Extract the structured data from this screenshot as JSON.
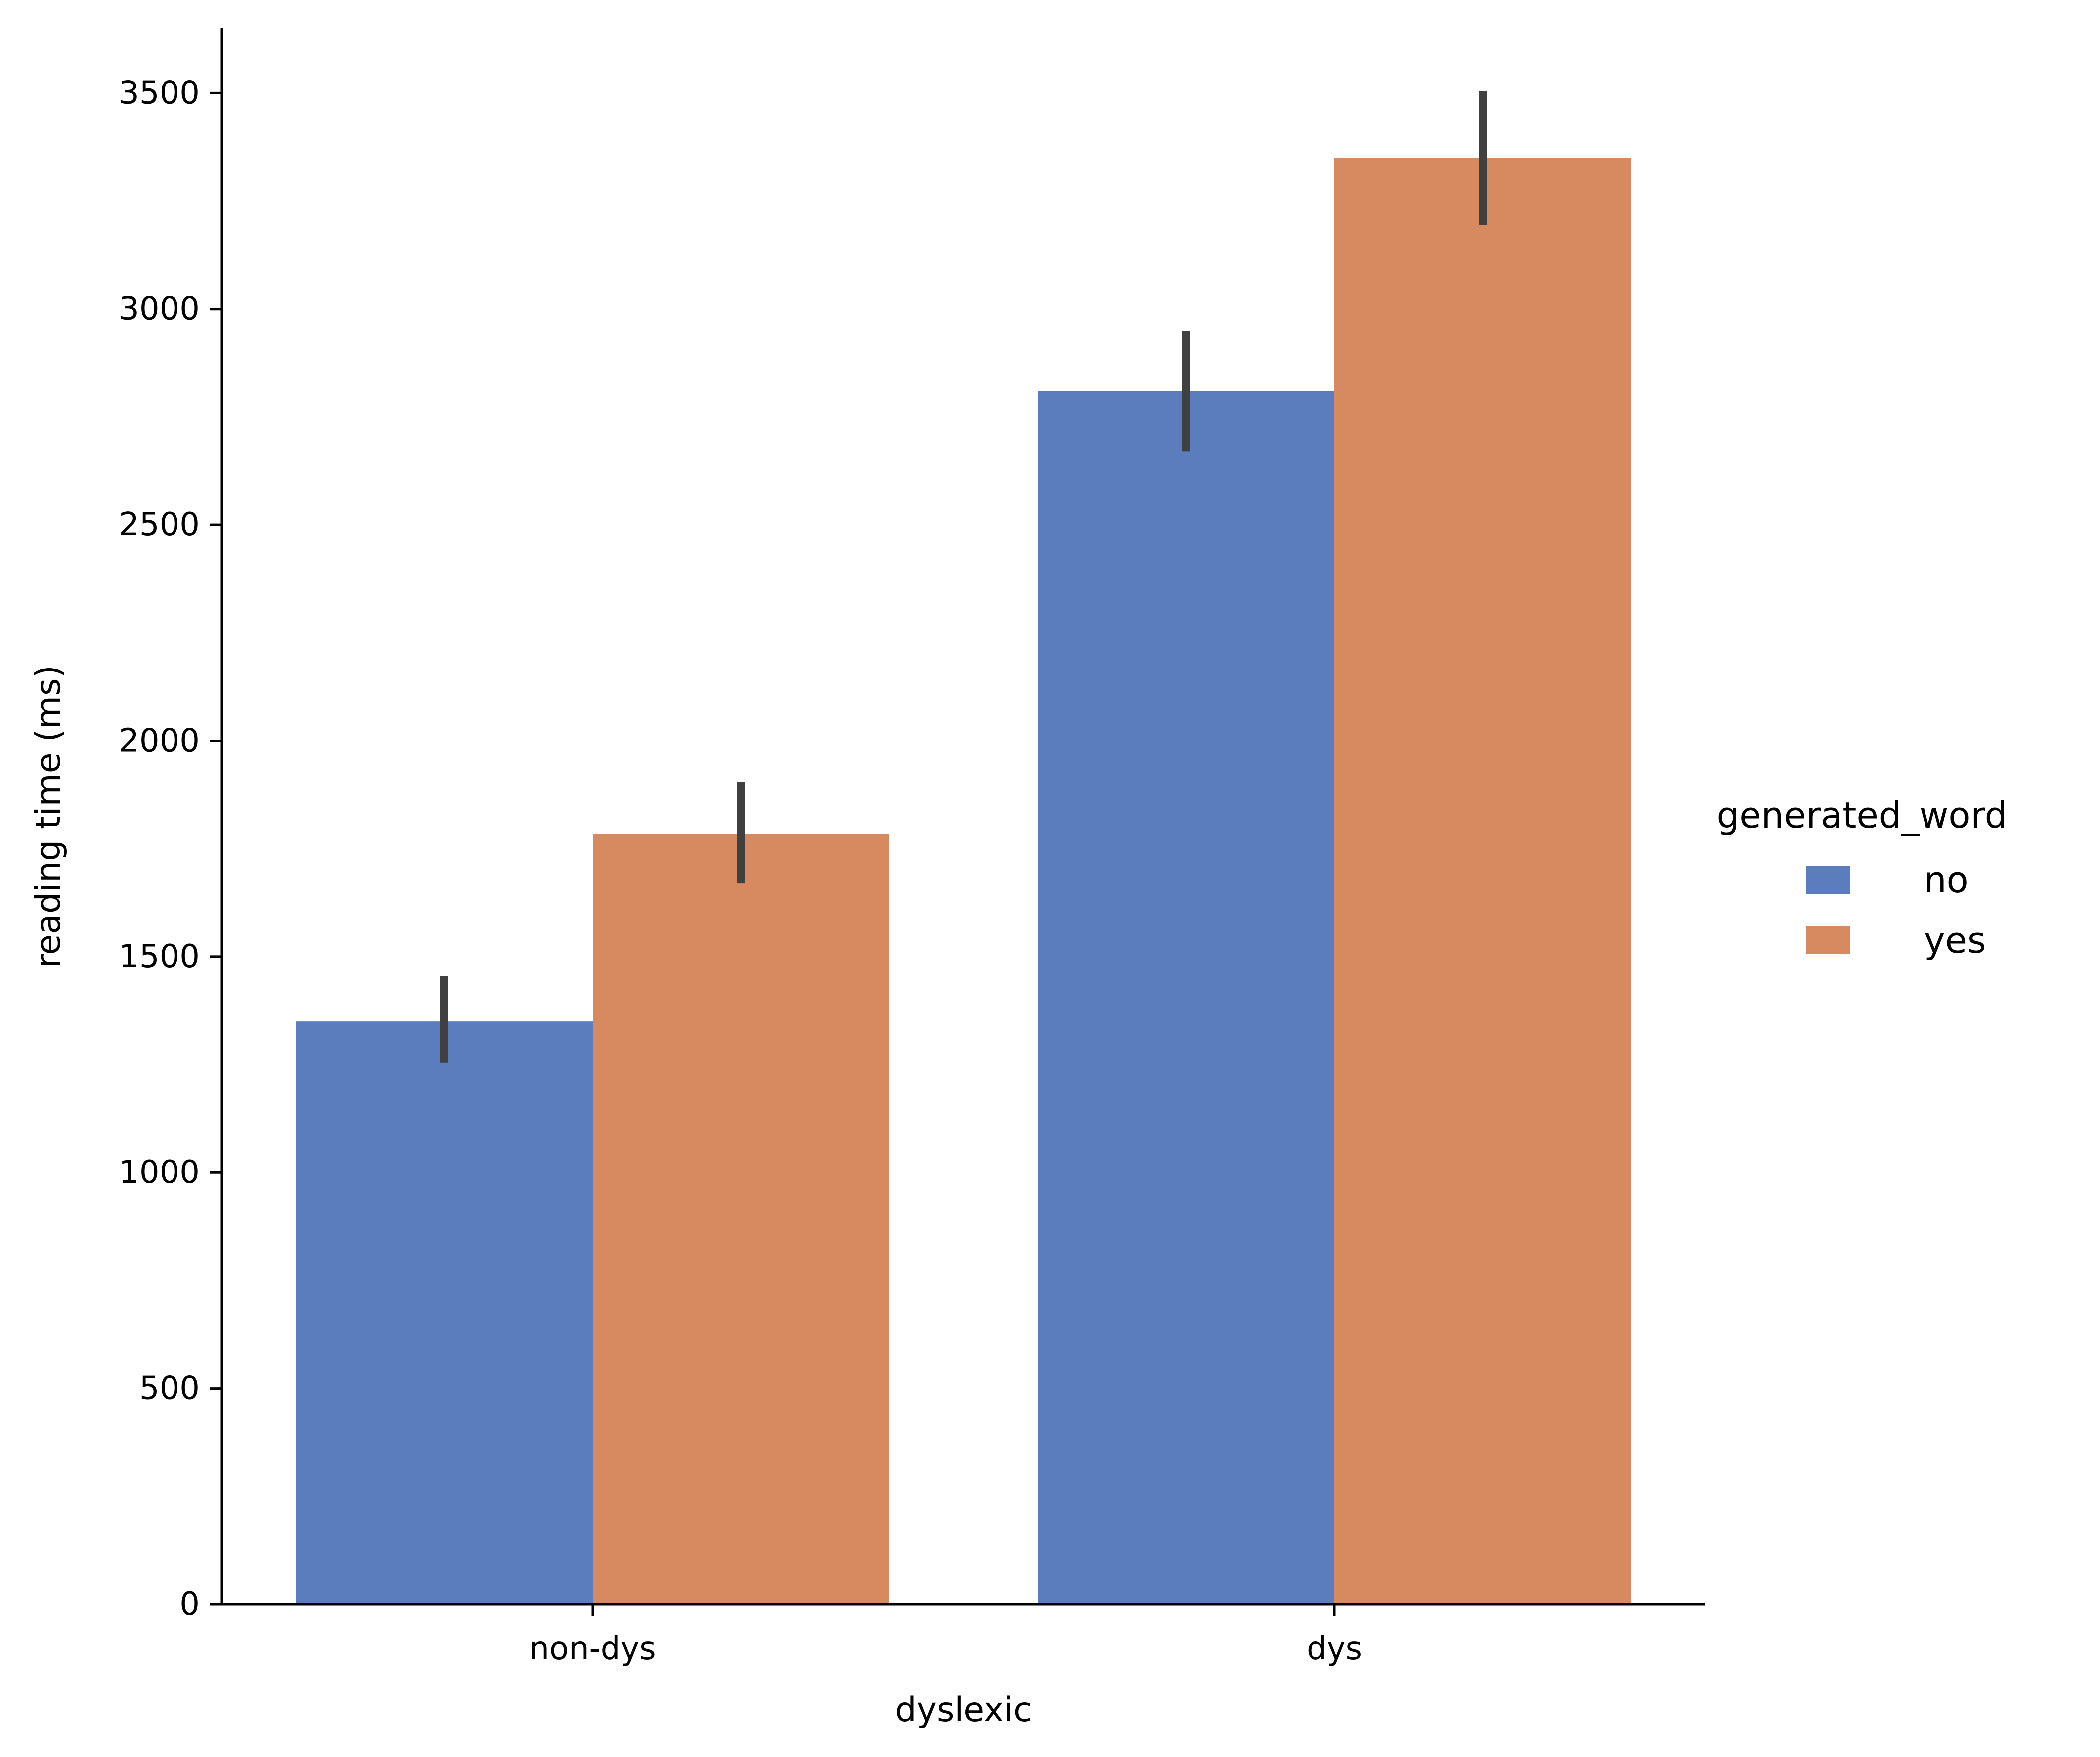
{
  "chart_data": {
    "type": "bar",
    "title": "",
    "xlabel": "dyslexic",
    "ylabel": "reading time (ms)",
    "categories": [
      "non-dys",
      "dys"
    ],
    "series": [
      {
        "name": "no",
        "color": "#5b7dbe",
        "values": [
          1350,
          2810
        ],
        "ci_low": [
          1255,
          2670
        ],
        "ci_high": [
          1455,
          2950
        ]
      },
      {
        "name": "yes",
        "color": "#d78a5f",
        "values": [
          1785,
          3350
        ],
        "ci_low": [
          1670,
          3195
        ],
        "ci_high": [
          1905,
          3505
        ]
      }
    ],
    "ylim": [
      0,
      3650
    ],
    "yticks": [
      0,
      500,
      1000,
      1500,
      2000,
      2500,
      3000,
      3500
    ],
    "ytick_labels": [
      "0",
      "500",
      "1000",
      "1500",
      "2000",
      "2500",
      "3000",
      "3500"
    ],
    "legend": {
      "title": "generated_word",
      "position": "right"
    },
    "errorbar_color": "#404040",
    "grid": false
  }
}
